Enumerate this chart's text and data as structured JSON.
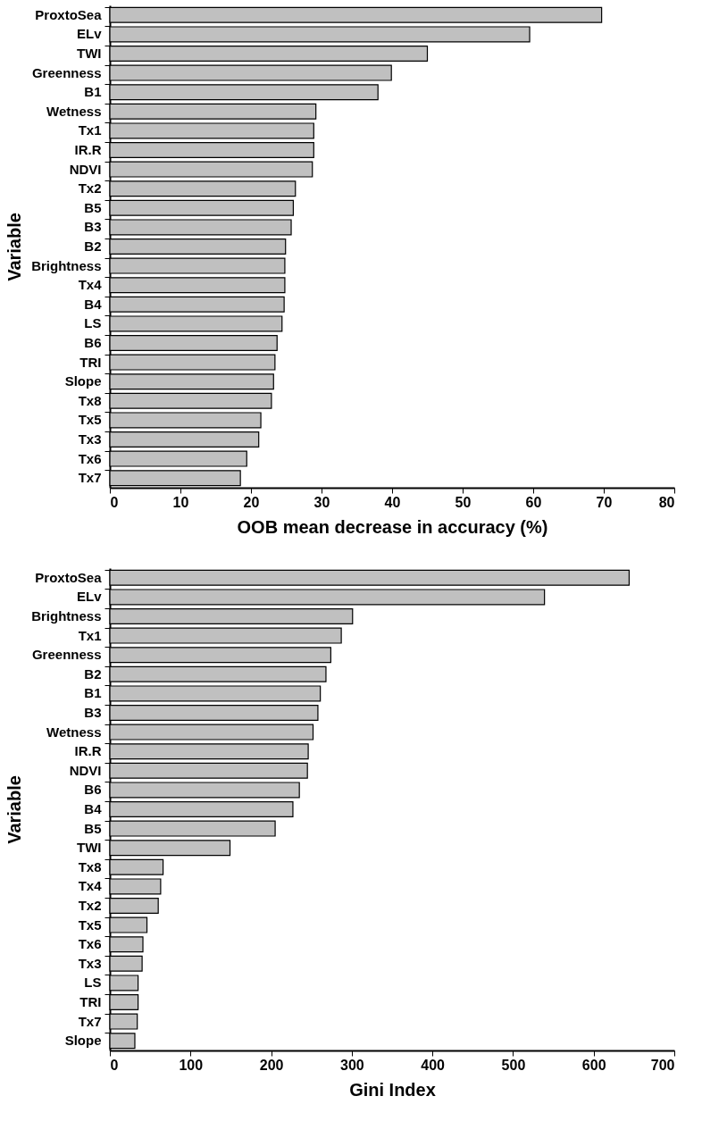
{
  "chart_data": [
    {
      "type": "bar",
      "orientation": "horizontal",
      "xlabel": "OOB mean decrease in accuracy (%)",
      "ylabel": "Variable",
      "color": "#c0c0c0",
      "categories": [
        "ProxtoSea",
        "ELv",
        "TWI",
        "Greenness",
        "B1",
        "Wetness",
        "Tx1",
        "IR.R",
        "NDVI",
        "Tx2",
        "B5",
        "B3",
        "B2",
        "Brightness",
        "Tx4",
        "B4",
        "LS",
        "B6",
        "TRI",
        "Slope",
        "Tx8",
        "Tx5",
        "Tx3",
        "Tx6",
        "Tx7"
      ],
      "values": [
        69.7,
        59.5,
        45.0,
        39.9,
        38.0,
        29.2,
        28.9,
        28.9,
        28.7,
        26.3,
        26.0,
        25.7,
        24.9,
        24.8,
        24.8,
        24.7,
        24.4,
        23.7,
        23.4,
        23.2,
        22.9,
        21.4,
        21.1,
        19.4,
        18.5
      ],
      "xlim": [
        0,
        80
      ],
      "xticks": [
        0,
        10,
        20,
        30,
        40,
        50,
        60,
        70,
        80
      ]
    },
    {
      "type": "bar",
      "orientation": "horizontal",
      "xlabel": "Gini Index",
      "ylabel": "Variable",
      "color": "#c0c0c0",
      "categories": [
        "ProxtoSea",
        "ELv",
        "Brightness",
        "Tx1",
        "Greenness",
        "B2",
        "B1",
        "B3",
        "Wetness",
        "IR.R",
        "NDVI",
        "B6",
        "B4",
        "B5",
        "TWI",
        "Tx8",
        "Tx4",
        "Tx2",
        "Tx5",
        "Tx6",
        "Tx3",
        "LS",
        "TRI",
        "Tx7",
        "Slope"
      ],
      "values": [
        644,
        539,
        301,
        287,
        274,
        268,
        261,
        258,
        252,
        246,
        245,
        235,
        227,
        205,
        149,
        66,
        63,
        60,
        46,
        41,
        40,
        35,
        35,
        34,
        31
      ],
      "xlim": [
        0,
        700
      ],
      "xticks": [
        0,
        100,
        200,
        300,
        400,
        500,
        600,
        700
      ]
    }
  ]
}
